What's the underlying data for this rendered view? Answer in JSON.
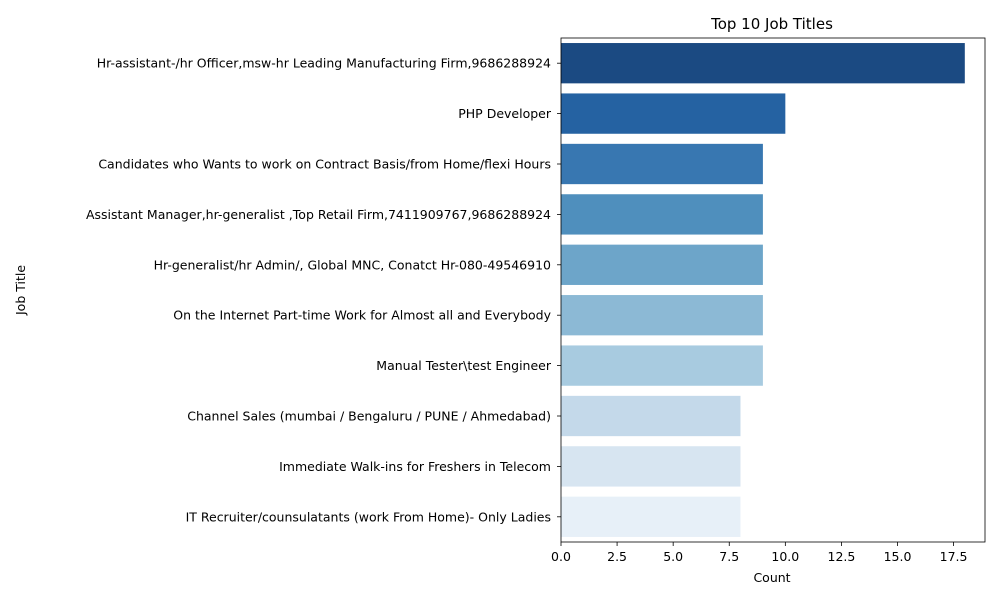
{
  "chart_data": {
    "type": "bar",
    "orientation": "horizontal",
    "title": "Top 10 Job Titles",
    "xlabel": "Count",
    "ylabel": "Job Title",
    "xlim": [
      0,
      18.9
    ],
    "xticks": [
      "0.0",
      "2.5",
      "5.0",
      "7.5",
      "10.0",
      "12.5",
      "15.0",
      "17.5"
    ],
    "grid": false,
    "categories": [
      "Hr-assistant-/hr Officer,msw-hr Leading Manufacturing Firm,9686288924",
      "PHP Developer",
      "Candidates who Wants to work on Contract Basis/from Home/flexi Hours",
      "Assistant Manager,hr-generalist ,Top Retail Firm,7411909767,9686288924",
      "Hr-generalist/hr Admin/, Global MNC, Conatct Hr-080-49546910",
      "On the Internet Part-time Work for Almost all and Everybody",
      "Manual Tester\\test Engineer",
      "Channel Sales (mumbai / Bengaluru / PUNE / Ahmedabad)",
      "Immediate Walk-ins for Freshers in Telecom",
      "IT Recruiter/counsulatants (work From Home)- Only Ladies"
    ],
    "values": [
      18,
      10,
      9,
      9,
      9,
      9,
      9,
      8,
      8,
      8
    ],
    "colors": [
      "#1b4a82",
      "#2562a2",
      "#3877b1",
      "#4f8fbd",
      "#6da5c9",
      "#8cb9d5",
      "#a8cbe0",
      "#c4d9ea",
      "#d7e5f1",
      "#e7f0f8"
    ]
  }
}
